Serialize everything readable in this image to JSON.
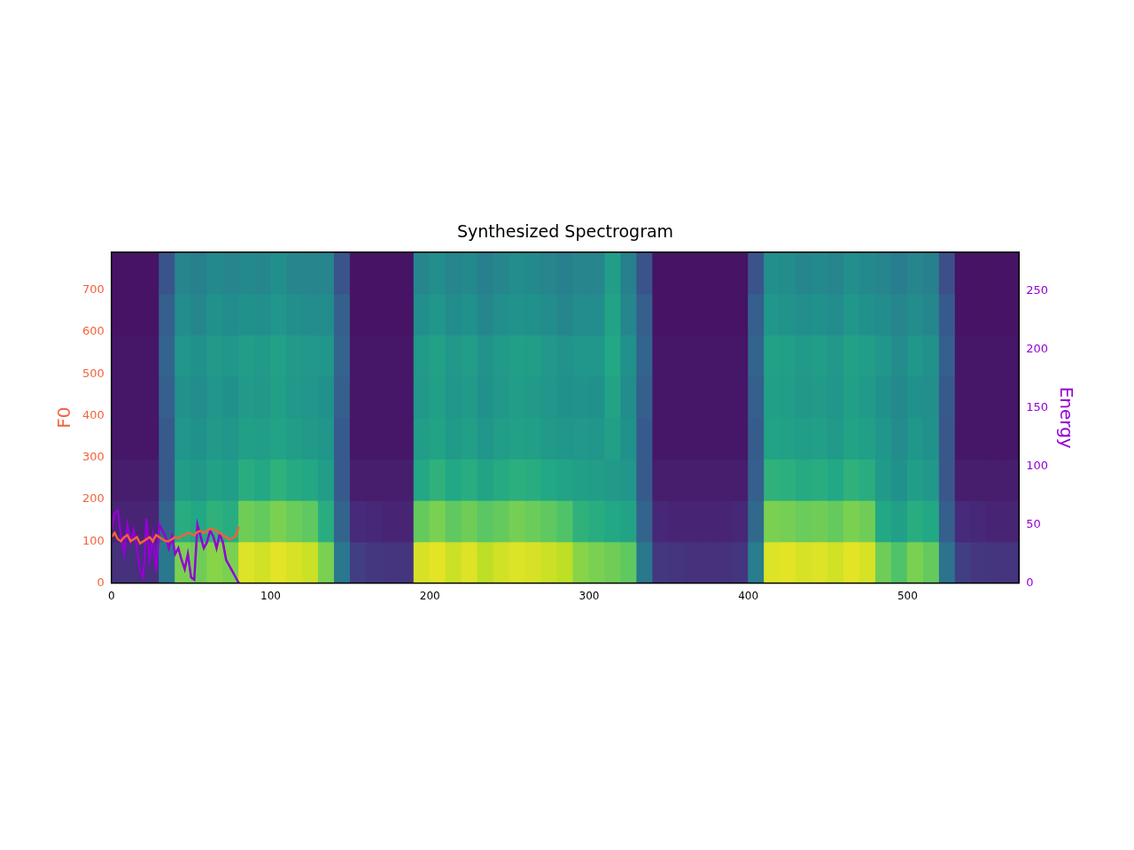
{
  "chart_data": {
    "type": "spectrogram",
    "title": "Synthesized Spectrogram",
    "xlim": [
      0,
      570
    ],
    "xticks": [
      0,
      100,
      200,
      300,
      400,
      500
    ],
    "ylim": [
      0,
      791
    ],
    "yticks": [
      0,
      100,
      200,
      300,
      400,
      500,
      600,
      700
    ],
    "y2lim": [
      0,
      283.5
    ],
    "y2ticks": [
      0,
      50,
      100,
      150,
      200,
      250
    ],
    "grid": false,
    "cells": {
      "frames": [
        0,
        10,
        20,
        30,
        40,
        50,
        60,
        70,
        80,
        90,
        100,
        110,
        120,
        130,
        140,
        150,
        160,
        170,
        180,
        190,
        200,
        210,
        220,
        230,
        240,
        250,
        260,
        270,
        280,
        290,
        300,
        310,
        320,
        330,
        340,
        350,
        360,
        370,
        380,
        390,
        400,
        410,
        420,
        430,
        440,
        450,
        460,
        470,
        480,
        490,
        500,
        510,
        520,
        530,
        540,
        550,
        560,
        570
      ],
      "bins": [
        0,
        10,
        20,
        30,
        40,
        50,
        60,
        70,
        80
      ],
      "zlim": [
        0,
        1
      ],
      "values": [
        [
          0.14,
          0.14,
          0.14,
          0.4,
          0.8,
          0.78,
          0.82,
          0.8,
          0.95,
          0.93,
          0.96,
          0.94,
          0.92,
          0.8,
          0.4,
          0.18,
          0.16,
          0.15,
          0.15,
          0.94,
          0.96,
          0.92,
          0.95,
          0.9,
          0.93,
          0.95,
          0.94,
          0.92,
          0.9,
          0.82,
          0.8,
          0.78,
          0.75,
          0.4,
          0.16,
          0.15,
          0.14,
          0.14,
          0.14,
          0.15,
          0.42,
          0.95,
          0.96,
          0.94,
          0.95,
          0.93,
          0.96,
          0.94,
          0.78,
          0.72,
          0.8,
          0.76,
          0.38,
          0.18,
          0.16,
          0.15,
          0.15
        ],
        [
          0.1,
          0.1,
          0.1,
          0.32,
          0.62,
          0.6,
          0.64,
          0.62,
          0.78,
          0.76,
          0.8,
          0.77,
          0.75,
          0.62,
          0.32,
          0.12,
          0.11,
          0.1,
          0.1,
          0.76,
          0.8,
          0.75,
          0.78,
          0.74,
          0.76,
          0.79,
          0.77,
          0.75,
          0.72,
          0.64,
          0.62,
          0.6,
          0.58,
          0.32,
          0.11,
          0.1,
          0.1,
          0.1,
          0.1,
          0.11,
          0.34,
          0.8,
          0.79,
          0.77,
          0.78,
          0.76,
          0.8,
          0.78,
          0.6,
          0.56,
          0.62,
          0.6,
          0.3,
          0.12,
          0.11,
          0.1,
          0.1
        ],
        [
          0.08,
          0.08,
          0.08,
          0.28,
          0.55,
          0.53,
          0.57,
          0.55,
          0.62,
          0.6,
          0.64,
          0.61,
          0.6,
          0.55,
          0.28,
          0.08,
          0.08,
          0.08,
          0.08,
          0.6,
          0.64,
          0.6,
          0.62,
          0.58,
          0.61,
          0.63,
          0.62,
          0.6,
          0.58,
          0.56,
          0.55,
          0.54,
          0.52,
          0.28,
          0.08,
          0.08,
          0.08,
          0.08,
          0.08,
          0.08,
          0.3,
          0.64,
          0.63,
          0.61,
          0.62,
          0.6,
          0.64,
          0.62,
          0.54,
          0.5,
          0.55,
          0.53,
          0.27,
          0.08,
          0.08,
          0.08,
          0.08
        ],
        [
          0.06,
          0.06,
          0.06,
          0.28,
          0.52,
          0.5,
          0.54,
          0.52,
          0.56,
          0.55,
          0.58,
          0.55,
          0.54,
          0.52,
          0.28,
          0.06,
          0.06,
          0.06,
          0.06,
          0.55,
          0.58,
          0.54,
          0.56,
          0.52,
          0.55,
          0.57,
          0.56,
          0.54,
          0.52,
          0.53,
          0.52,
          0.56,
          0.5,
          0.28,
          0.06,
          0.06,
          0.06,
          0.06,
          0.06,
          0.06,
          0.29,
          0.58,
          0.57,
          0.55,
          0.56,
          0.54,
          0.58,
          0.56,
          0.52,
          0.48,
          0.52,
          0.5,
          0.27,
          0.06,
          0.06,
          0.06,
          0.06
        ],
        [
          0.06,
          0.06,
          0.06,
          0.3,
          0.5,
          0.48,
          0.52,
          0.5,
          0.54,
          0.53,
          0.56,
          0.53,
          0.52,
          0.5,
          0.3,
          0.06,
          0.06,
          0.06,
          0.06,
          0.53,
          0.56,
          0.52,
          0.54,
          0.5,
          0.53,
          0.55,
          0.54,
          0.52,
          0.5,
          0.51,
          0.5,
          0.58,
          0.48,
          0.3,
          0.06,
          0.06,
          0.06,
          0.06,
          0.06,
          0.06,
          0.3,
          0.56,
          0.55,
          0.53,
          0.54,
          0.52,
          0.56,
          0.54,
          0.5,
          0.47,
          0.5,
          0.49,
          0.28,
          0.06,
          0.06,
          0.06,
          0.06
        ],
        [
          0.06,
          0.06,
          0.06,
          0.32,
          0.52,
          0.5,
          0.54,
          0.52,
          0.55,
          0.54,
          0.57,
          0.54,
          0.53,
          0.52,
          0.32,
          0.06,
          0.06,
          0.06,
          0.06,
          0.54,
          0.57,
          0.53,
          0.55,
          0.51,
          0.54,
          0.56,
          0.55,
          0.53,
          0.51,
          0.52,
          0.52,
          0.6,
          0.5,
          0.32,
          0.06,
          0.06,
          0.06,
          0.06,
          0.06,
          0.06,
          0.32,
          0.57,
          0.56,
          0.54,
          0.55,
          0.53,
          0.57,
          0.55,
          0.52,
          0.48,
          0.52,
          0.5,
          0.3,
          0.06,
          0.06,
          0.06,
          0.06
        ],
        [
          0.05,
          0.05,
          0.05,
          0.3,
          0.48,
          0.46,
          0.5,
          0.48,
          0.5,
          0.49,
          0.52,
          0.49,
          0.48,
          0.48,
          0.3,
          0.05,
          0.05,
          0.05,
          0.05,
          0.49,
          0.52,
          0.48,
          0.5,
          0.46,
          0.49,
          0.51,
          0.5,
          0.48,
          0.46,
          0.48,
          0.48,
          0.58,
          0.46,
          0.3,
          0.05,
          0.05,
          0.05,
          0.05,
          0.05,
          0.05,
          0.3,
          0.52,
          0.51,
          0.49,
          0.5,
          0.48,
          0.52,
          0.5,
          0.48,
          0.45,
          0.48,
          0.46,
          0.28,
          0.05,
          0.05,
          0.05,
          0.05
        ],
        [
          0.05,
          0.05,
          0.05,
          0.26,
          0.45,
          0.43,
          0.47,
          0.45,
          0.47,
          0.46,
          0.49,
          0.46,
          0.45,
          0.45,
          0.26,
          0.05,
          0.05,
          0.05,
          0.05,
          0.46,
          0.49,
          0.45,
          0.47,
          0.43,
          0.46,
          0.48,
          0.47,
          0.45,
          0.43,
          0.45,
          0.45,
          0.55,
          0.43,
          0.26,
          0.05,
          0.05,
          0.05,
          0.05,
          0.05,
          0.05,
          0.26,
          0.49,
          0.48,
          0.46,
          0.47,
          0.45,
          0.49,
          0.47,
          0.45,
          0.42,
          0.45,
          0.43,
          0.24,
          0.05,
          0.05,
          0.05,
          0.05
        ]
      ]
    },
    "series": [
      {
        "name": "F0",
        "color": "#f4623a",
        "x": [
          0,
          2,
          4,
          6,
          8,
          10,
          12,
          14,
          16,
          18,
          20,
          22,
          24,
          26,
          28,
          30,
          32,
          34,
          36,
          38,
          40,
          42,
          44,
          46,
          48,
          50,
          52,
          54,
          56,
          58,
          60,
          62,
          64,
          66,
          68,
          70,
          72,
          74,
          76,
          78,
          80
        ],
        "values": [
          110,
          120,
          105,
          100,
          110,
          115,
          100,
          105,
          110,
          95,
          100,
          105,
          110,
          100,
          115,
          110,
          105,
          100,
          100,
          105,
          110,
          108,
          112,
          115,
          120,
          118,
          115,
          122,
          125,
          120,
          125,
          130,
          128,
          125,
          120,
          115,
          110,
          105,
          108,
          112,
          135
        ]
      },
      {
        "name": "Energy",
        "color": "#9400d3",
        "axis": "y2",
        "x": [
          0,
          2,
          4,
          6,
          8,
          10,
          12,
          14,
          16,
          18,
          20,
          22,
          24,
          26,
          28,
          30,
          32,
          34,
          36,
          38,
          40,
          42,
          44,
          46,
          48,
          50,
          52,
          54,
          56,
          58,
          60,
          62,
          64,
          66,
          68,
          70,
          72,
          74,
          76,
          78,
          80
        ],
        "values": [
          45,
          60,
          62,
          40,
          25,
          50,
          35,
          45,
          30,
          10,
          5,
          55,
          20,
          40,
          10,
          50,
          45,
          40,
          30,
          40,
          25,
          30,
          20,
          12,
          25,
          5,
          3,
          50,
          40,
          30,
          35,
          45,
          40,
          30,
          42,
          35,
          20,
          15,
          10,
          5,
          0
        ]
      }
    ]
  }
}
